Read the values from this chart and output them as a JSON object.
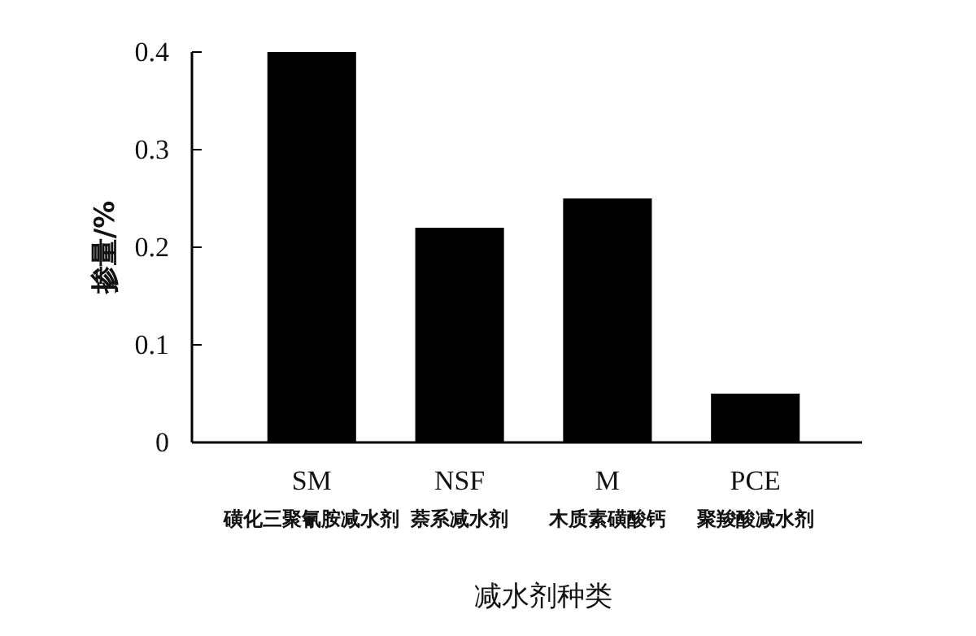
{
  "chart_data": {
    "type": "bar",
    "xlabel": "减水剂种类",
    "ylabel": "掺量/%",
    "categories": [
      "SM\n磺化三聚氰胺减水剂",
      "NSF\n萘系减水剂",
      "M\n木质素磺酸钙",
      "PCE\n聚羧酸减水剂"
    ],
    "values": [
      0.4,
      0.22,
      0.25,
      0.05
    ],
    "color": "#000000",
    "ylim": [
      0,
      0.4
    ],
    "yticks": [
      {
        "value": 0,
        "label": "0"
      },
      {
        "value": 0.1,
        "label": "0.1"
      },
      {
        "value": 0.2,
        "label": "0.2"
      },
      {
        "value": 0.3,
        "label": "0.3"
      },
      {
        "value": 0.4,
        "label": "0.4"
      }
    ],
    "grid": false
  }
}
